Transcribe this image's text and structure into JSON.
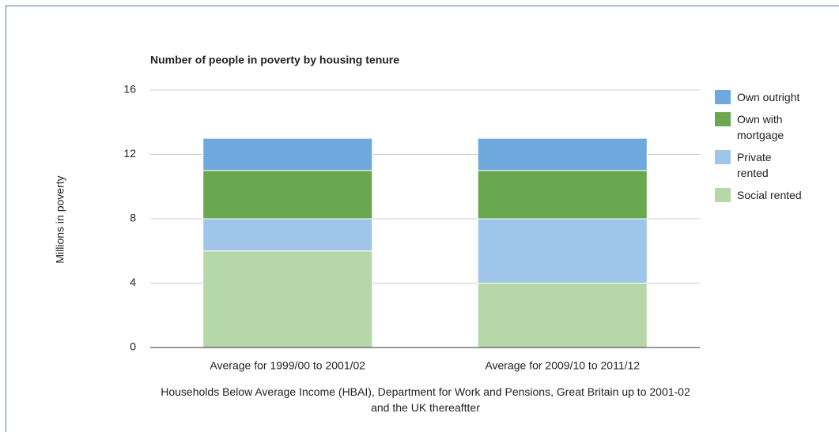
{
  "chart_data": {
    "type": "stacked_bar",
    "title": "Number of people in poverty by housing tenure",
    "y_label": "Millions in poverty",
    "x_label": "Households Below Average Income (HBAI), Department for Work and Pensions, Great Britain up to 2001-02 and the UK thereaftter",
    "categories": [
      "Average for 1999/00 to 2001/02",
      "Average for 2009/10 to 2011/12"
    ],
    "series": [
      {
        "name": "Own outright",
        "color": "#6fa8dc",
        "values": [
          2,
          2
        ]
      },
      {
        "name": "Own with mortgage",
        "color": "#6aa84f",
        "values": [
          3,
          3
        ]
      },
      {
        "name": "Private rented",
        "color": "#9fc5e8",
        "values": [
          2,
          4
        ]
      },
      {
        "name": "Social rented",
        "color": "#b6d7a8",
        "values": [
          6,
          4
        ]
      }
    ],
    "ylim": [
      0,
      16
    ],
    "yticks": [
      0,
      4,
      8,
      12,
      16
    ],
    "grid": true,
    "legend": "right"
  }
}
